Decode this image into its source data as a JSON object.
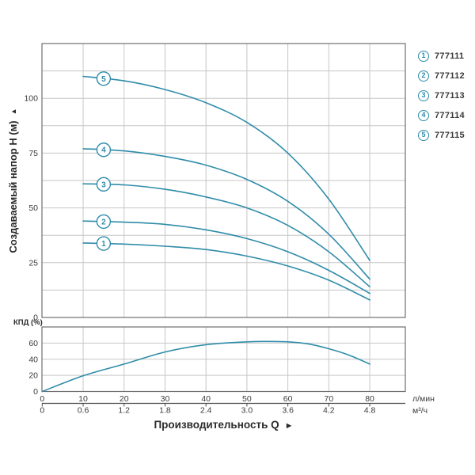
{
  "colors": {
    "accent": "#2f8ca9",
    "grid": "#c6c6c6",
    "border": "#6f6f6f",
    "axis_line": "#4a4a4a",
    "text": "#3a3a3a"
  },
  "axes": {
    "y_title": "Создаваемый напор H (м)",
    "y_arrow": "▲",
    "x_title": "Производительность Q",
    "x_arrow": "►",
    "eff_title": "КПД (%)",
    "unit_lmin": "л/мин",
    "unit_m3h": "м³/ч"
  },
  "legend": {
    "items": [
      {
        "num": "1",
        "label": "777111"
      },
      {
        "num": "2",
        "label": "777112"
      },
      {
        "num": "3",
        "label": "777113"
      },
      {
        "num": "4",
        "label": "777114"
      },
      {
        "num": "5",
        "label": "777115"
      }
    ]
  },
  "chart_data": [
    {
      "type": "line",
      "title": "",
      "ylabel": "Создаваемый напор H (м)",
      "xlabel": "Производительность Q",
      "ylim": [
        0,
        125
      ],
      "y_ticks": [
        0,
        25,
        50,
        75,
        100
      ],
      "grid_y_step": 12.5,
      "grid_x_step_lmin": 10,
      "xlim_lmin": [
        0,
        88.7
      ],
      "x_unit_rows": [
        {
          "unit": "л/мин",
          "ticks": [
            "0",
            "10",
            "20",
            "30",
            "40",
            "50",
            "60",
            "70",
            "80"
          ]
        },
        {
          "unit": "м³/ч",
          "ticks": [
            "0",
            "0.6",
            "1.2",
            "1.8",
            "2.4",
            "3.0",
            "3.6",
            "4.2",
            "4.8"
          ]
        }
      ],
      "x_lmin": [
        10,
        20,
        30,
        40,
        50,
        60,
        70,
        80
      ],
      "marker_q": 15,
      "series": [
        {
          "name": "1",
          "model": "777111",
          "values": [
            34,
            33.5,
            32.5,
            31,
            28,
            23.5,
            17,
            8
          ]
        },
        {
          "name": "2",
          "model": "777112",
          "values": [
            44,
            43.5,
            42.5,
            40,
            36,
            30,
            21.5,
            11
          ]
        },
        {
          "name": "3",
          "model": "777113",
          "values": [
            61,
            60.5,
            58.5,
            55,
            50,
            42,
            30,
            14
          ]
        },
        {
          "name": "4",
          "model": "777114",
          "values": [
            77,
            76,
            73.5,
            69.5,
            63,
            53,
            38,
            17.5
          ]
        },
        {
          "name": "5",
          "model": "777115",
          "values": [
            110,
            108,
            104,
            98,
            89,
            75,
            54,
            26
          ]
        }
      ]
    },
    {
      "type": "line",
      "title": "",
      "ylabel": "КПД (%)",
      "ylim": [
        0,
        80
      ],
      "y_ticks": [
        0,
        20,
        40,
        60
      ],
      "x_lmin": [
        0,
        10,
        20,
        30,
        40,
        50,
        55,
        60,
        65,
        70,
        75,
        80
      ],
      "values": [
        0,
        19.5,
        34,
        49,
        58,
        61.5,
        62,
        61.5,
        59,
        53,
        45,
        34
      ]
    }
  ]
}
